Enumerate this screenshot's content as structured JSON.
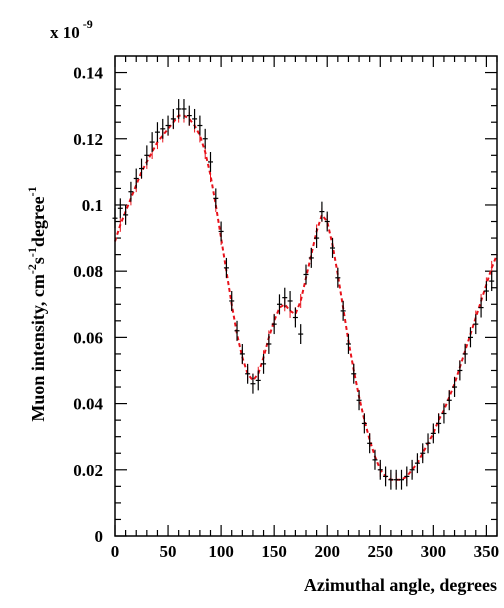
{
  "chart_data": {
    "type": "scatter",
    "multiplier_label": {
      "base": "x 10",
      "exponent": "-9"
    },
    "xlabel": "Azimuthal angle, degrees",
    "ylabel": {
      "parts": [
        {
          "text": "Muon intensity, cm",
          "sup": false
        },
        {
          "text": "-2",
          "sup": true
        },
        {
          "text": "s",
          "sup": false
        },
        {
          "text": "-1",
          "sup": true
        },
        {
          "text": "degree",
          "sup": false
        },
        {
          "text": "-1",
          "sup": true
        }
      ]
    },
    "xlim": [
      0,
      360
    ],
    "ylim": [
      0,
      0.145
    ],
    "x_ticks": [
      0,
      50,
      100,
      150,
      200,
      250,
      300,
      350
    ],
    "x_tick_labels": [
      "0",
      "50",
      "100",
      "150",
      "200",
      "250",
      "300",
      "350"
    ],
    "y_ticks": [
      0,
      0.02,
      0.04,
      0.06,
      0.08,
      0.1,
      0.12,
      0.14
    ],
    "y_tick_labels": [
      "0",
      "0.02",
      "0.04",
      "0.06",
      "0.08",
      "0.1",
      "0.12",
      "0.14"
    ],
    "grid": false,
    "legend": "none",
    "series": [
      {
        "style": "black-errorbars",
        "color": "#000000",
        "x": [
          0,
          5,
          10,
          15,
          20,
          25,
          30,
          35,
          40,
          45,
          50,
          55,
          60,
          65,
          70,
          75,
          80,
          85,
          90,
          95,
          100,
          105,
          110,
          115,
          120,
          125,
          130,
          135,
          140,
          145,
          150,
          155,
          160,
          165,
          170,
          175,
          180,
          185,
          190,
          195,
          200,
          205,
          210,
          215,
          220,
          225,
          230,
          235,
          240,
          245,
          250,
          255,
          260,
          265,
          270,
          275,
          280,
          285,
          290,
          295,
          300,
          305,
          310,
          315,
          320,
          325,
          330,
          335,
          340,
          345,
          350,
          355
        ],
        "y": [
          0.096,
          0.099,
          0.097,
          0.104,
          0.108,
          0.111,
          0.115,
          0.119,
          0.122,
          0.123,
          0.124,
          0.126,
          0.129,
          0.129,
          0.127,
          0.126,
          0.124,
          0.12,
          0.113,
          0.102,
          0.092,
          0.081,
          0.071,
          0.062,
          0.055,
          0.049,
          0.046,
          0.047,
          0.052,
          0.058,
          0.064,
          0.07,
          0.072,
          0.071,
          0.066,
          0.061,
          0.079,
          0.084,
          0.09,
          0.098,
          0.095,
          0.087,
          0.078,
          0.068,
          0.058,
          0.049,
          0.041,
          0.034,
          0.028,
          0.023,
          0.02,
          0.018,
          0.017,
          0.017,
          0.017,
          0.018,
          0.02,
          0.022,
          0.025,
          0.028,
          0.031,
          0.034,
          0.037,
          0.041,
          0.045,
          0.05,
          0.055,
          0.06,
          0.064,
          0.069,
          0.074,
          0.077
        ],
        "err": 0.003
      },
      {
        "style": "red-dashed",
        "color": "#e8121b",
        "x": [
          0,
          5,
          10,
          15,
          20,
          25,
          30,
          35,
          40,
          45,
          50,
          55,
          60,
          65,
          70,
          75,
          80,
          85,
          90,
          95,
          100,
          105,
          110,
          115,
          120,
          125,
          130,
          135,
          140,
          145,
          150,
          155,
          160,
          165,
          170,
          175,
          180,
          185,
          190,
          195,
          200,
          205,
          210,
          215,
          220,
          225,
          230,
          235,
          240,
          245,
          250,
          255,
          260,
          265,
          270,
          275,
          280,
          285,
          290,
          295,
          300,
          305,
          310,
          315,
          320,
          325,
          330,
          335,
          340,
          345,
          350,
          355,
          360
        ],
        "y": [
          0.089,
          0.094,
          0.098,
          0.102,
          0.106,
          0.11,
          0.113,
          0.116,
          0.119,
          0.121,
          0.123,
          0.125,
          0.127,
          0.127,
          0.126,
          0.124,
          0.121,
          0.116,
          0.109,
          0.1,
          0.09,
          0.08,
          0.07,
          0.061,
          0.054,
          0.049,
          0.047,
          0.049,
          0.054,
          0.06,
          0.065,
          0.069,
          0.07,
          0.068,
          0.067,
          0.071,
          0.078,
          0.085,
          0.092,
          0.097,
          0.095,
          0.088,
          0.079,
          0.069,
          0.059,
          0.05,
          0.042,
          0.035,
          0.029,
          0.024,
          0.02,
          0.018,
          0.017,
          0.017,
          0.017,
          0.018,
          0.02,
          0.022,
          0.025,
          0.028,
          0.031,
          0.035,
          0.038,
          0.042,
          0.046,
          0.051,
          0.056,
          0.061,
          0.066,
          0.071,
          0.076,
          0.081,
          0.085
        ]
      }
    ]
  }
}
